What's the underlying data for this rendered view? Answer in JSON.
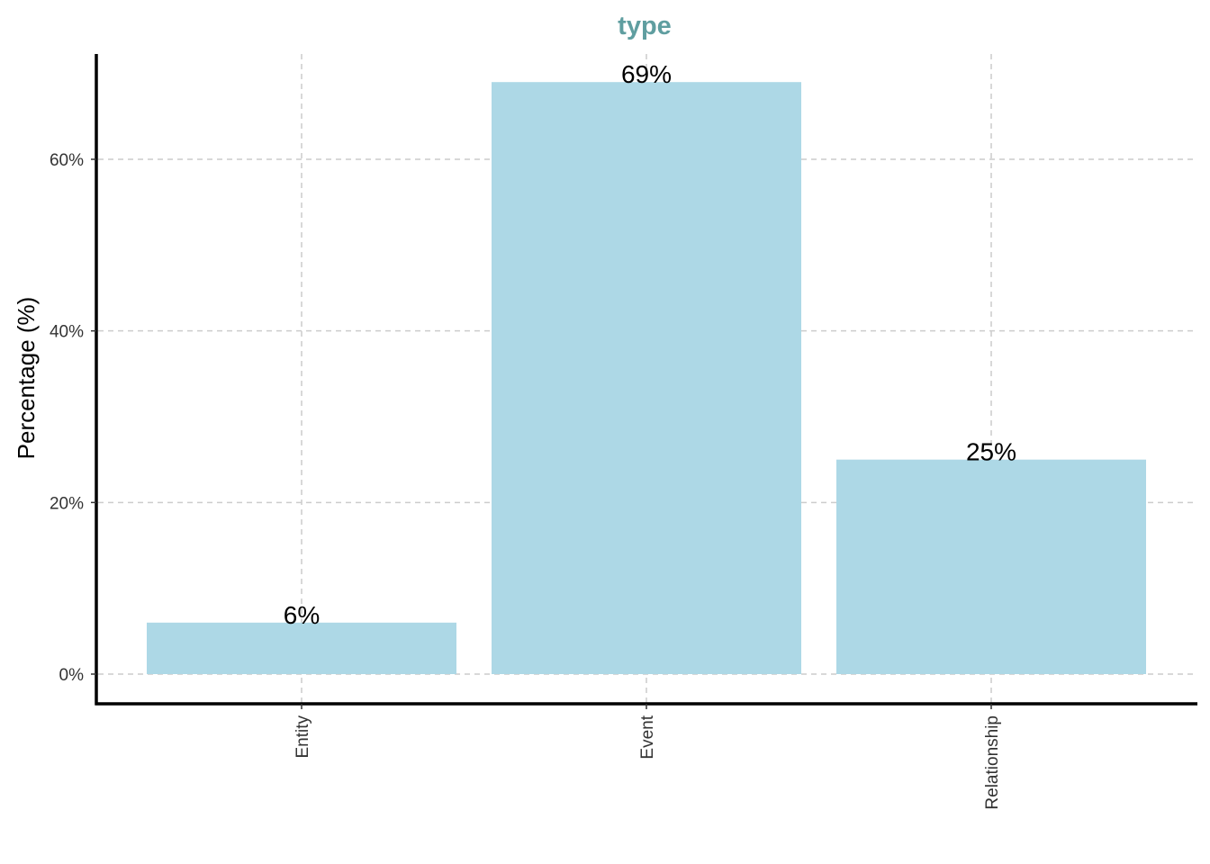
{
  "chart_data": {
    "type": "bar",
    "title": "type",
    "xlabel": "",
    "ylabel": "Percentage (%)",
    "categories": [
      "Entity",
      "Event",
      "Relationship"
    ],
    "values": [
      6,
      69,
      25
    ],
    "bar_labels": [
      "6%",
      "69%",
      "25%"
    ],
    "y_ticks": [
      0,
      20,
      40,
      60
    ],
    "y_tick_labels": [
      "0%",
      "20%",
      "40%",
      "60%"
    ],
    "ylim": [
      -3.3,
      72.5
    ],
    "grid": true,
    "grid_style": "dashed",
    "legend": "none",
    "x_tick_label_rotation": "vertical"
  },
  "colors": {
    "title": "#5f9ea0",
    "bar": "#add8e6",
    "grid": "#cccccc",
    "axis": "#000000",
    "tick_text": "#333333"
  }
}
